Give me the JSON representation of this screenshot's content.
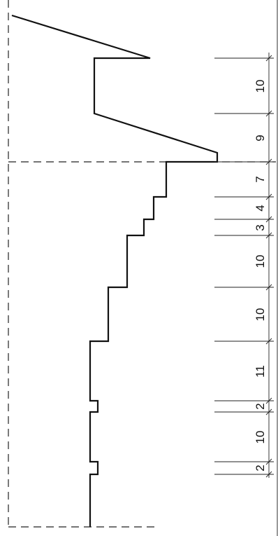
{
  "dimensions": [
    {
      "id": "dim-10-top",
      "label": "10"
    },
    {
      "id": "dim-9",
      "label": "9"
    },
    {
      "id": "dim-7",
      "label": "7"
    },
    {
      "id": "dim-4",
      "label": "4"
    },
    {
      "id": "dim-3",
      "label": "3"
    },
    {
      "id": "dim-10-a",
      "label": "10"
    },
    {
      "id": "dim-10-b",
      "label": "10"
    },
    {
      "id": "dim-11",
      "label": "11"
    },
    {
      "id": "dim-2-a",
      "label": "2"
    },
    {
      "id": "dim-10-c",
      "label": "10"
    },
    {
      "id": "dim-2-b",
      "label": "2"
    }
  ]
}
